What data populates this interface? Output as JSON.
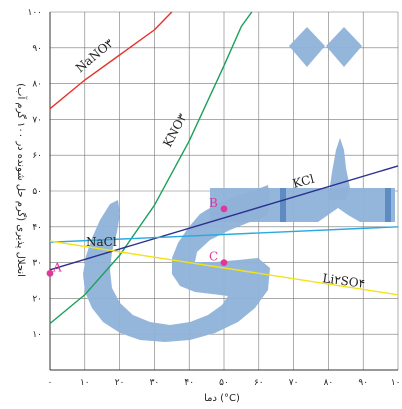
{
  "chart_data": {
    "type": "line",
    "ylabel": "انحلال پذیری (گرم حل شونده در ۱۰۰ گرم آب)",
    "xlabel": "دما (°C)",
    "xlim": [
      0,
      100
    ],
    "ylim": [
      0,
      100
    ],
    "x_ticks": [
      0,
      10,
      20,
      30,
      40,
      50,
      60,
      70,
      80,
      90,
      100
    ],
    "y_ticks": [
      10,
      20,
      30,
      40,
      50,
      60,
      70,
      80,
      90,
      100
    ],
    "x_tick_labels": [
      "۰",
      "۱۰",
      "۲۰",
      "۳۰",
      "۴۰",
      "۵۰",
      "۶۰",
      "۷۰",
      "۸۰",
      "۹۰",
      "۱۰۰"
    ],
    "y_tick_labels": [
      "۱۰",
      "۲۰",
      "۳۰",
      "۴۰",
      "۵۰",
      "۶۰",
      "۷۰",
      "۸۰",
      "۹۰",
      "۱۰۰"
    ],
    "grid": true,
    "series": [
      {
        "name": "NaNO۳",
        "color": "#e8302a",
        "x": [
          0,
          10,
          20,
          30,
          35
        ],
        "y": [
          73,
          81,
          88,
          95,
          100
        ]
      },
      {
        "name": "KNO۳",
        "color": "#1aa05a",
        "x": [
          0,
          10,
          20,
          30,
          40,
          50,
          55,
          58
        ],
        "y": [
          13,
          21,
          32,
          46,
          64,
          85,
          96,
          100
        ]
      },
      {
        "name": "KCl",
        "color": "#2b2f8f",
        "x": [
          0,
          100
        ],
        "y": [
          28,
          57
        ]
      },
      {
        "name": "NaCl",
        "color": "#29a9e0",
        "x": [
          0,
          100
        ],
        "y": [
          35.7,
          40
        ]
      },
      {
        "name": "Li۲SO۴",
        "color": "#f2e21a",
        "x": [
          0,
          100
        ],
        "y": [
          36,
          21
        ]
      }
    ],
    "points": [
      {
        "label": "A",
        "x": 0,
        "y": 27,
        "color": "#e0389a"
      },
      {
        "label": "B",
        "x": 50,
        "y": 45,
        "color": "#e0389a"
      },
      {
        "label": "C",
        "x": 50,
        "y": 30,
        "color": "#e0389a"
      }
    ]
  }
}
